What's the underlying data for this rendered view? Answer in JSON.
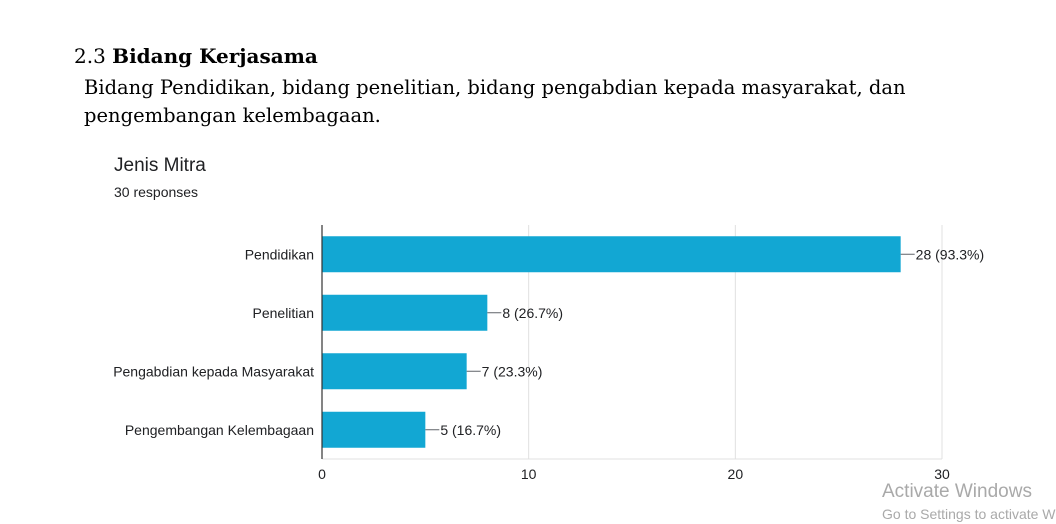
{
  "document": {
    "section_number": "2.3",
    "section_title": "Bidang Kerjasama",
    "paragraph_line1": "Bidang Pendidikan, bidang penelitian, bidang pengabdian kepada masyarakat, dan",
    "paragraph_line2": "pengembangan kelembagaan."
  },
  "chart_data": {
    "type": "bar",
    "orientation": "horizontal",
    "title": "Jenis Mitra",
    "subtitle": "30 responses",
    "categories": [
      "Pendidikan",
      "Penelitian",
      "Pengabdian kepada Masyarakat",
      "Pengembangan Kelembagaan"
    ],
    "values": [
      28,
      8,
      7,
      5
    ],
    "value_labels": [
      "28 (93.3%)",
      "8 (26.7%)",
      "7 (23.3%)",
      "5 (16.7%)"
    ],
    "xlim": [
      0,
      30
    ],
    "xticks": [
      0,
      10,
      20,
      30
    ],
    "tick_labels": [
      "0",
      "10",
      "20",
      "30"
    ],
    "grid": true,
    "legend": "none",
    "bar_color": "#12a7d3"
  },
  "watermark": {
    "title": "Activate Windows",
    "subtitle": "Go to Settings to activate Windows."
  }
}
